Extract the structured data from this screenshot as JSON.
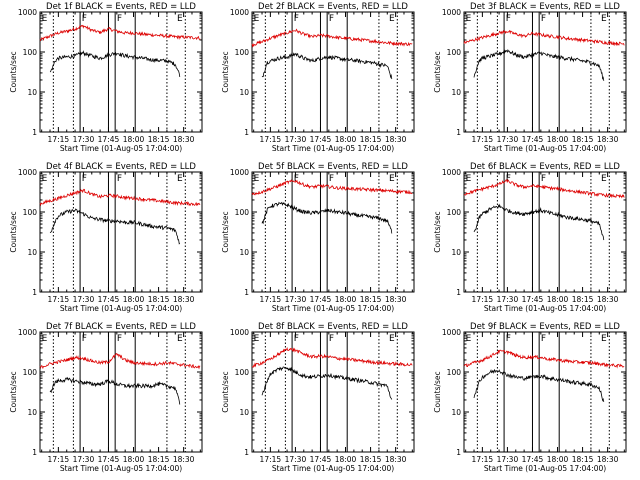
{
  "chart_data": {
    "type": "line",
    "panel_grid": {
      "rows": 3,
      "cols": 3
    },
    "shared": {
      "xlabel": "Start Time (01-Aug-05 17:04:00)",
      "ylabel": "Counts/sec",
      "y_scale": "log",
      "ylim": [
        1,
        1000
      ],
      "ytick_labels": [
        "1",
        "10",
        "100",
        "1000"
      ],
      "ytick_values": [
        1,
        10,
        100,
        1000
      ],
      "xlim": [
        "17:04",
        "18:41"
      ],
      "xtick_labels": [
        "17:15",
        "17:30",
        "17:45",
        "18:00",
        "18:15",
        "18:30"
      ],
      "xtick_values": [
        "17:15",
        "17:30",
        "17:45",
        "18:00",
        "18:15",
        "18:30"
      ],
      "series_colors": {
        "events": "#000000",
        "lld": "#dd0000"
      },
      "solid_markers": [
        "17:28",
        "17:45",
        "17:49",
        "18:01"
      ],
      "dotted_markers": [
        "17:12",
        "17:24",
        "18:20",
        "18:31"
      ],
      "marker_labels": [
        {
          "text": "E",
          "at": "17:05"
        },
        {
          "text": "F",
          "at": "17:29"
        },
        {
          "text": "F",
          "at": "17:50"
        },
        {
          "text": "E",
          "at": "18:26"
        }
      ]
    },
    "panels": [
      {
        "title": "Det 1f BLACK = Events, RED = LLD",
        "events": {
          "x": [
            "17:10",
            "17:12",
            "17:13",
            "17:15",
            "17:20",
            "17:25",
            "17:30",
            "17:35",
            "17:40",
            "17:45",
            "17:50",
            "17:55",
            "18:00",
            "18:05",
            "18:10",
            "18:15",
            "18:20",
            "18:25",
            "18:28"
          ],
          "y": [
            30,
            45,
            60,
            70,
            75,
            80,
            95,
            80,
            70,
            85,
            95,
            80,
            75,
            70,
            65,
            62,
            60,
            50,
            25
          ]
        },
        "lld": {
          "x": [
            "17:04",
            "17:10",
            "17:15",
            "17:20",
            "17:25",
            "17:30",
            "17:35",
            "17:40",
            "17:45",
            "17:50",
            "17:55",
            "18:00",
            "18:05",
            "18:10",
            "18:15",
            "18:20",
            "18:25",
            "18:30",
            "18:35",
            "18:40"
          ],
          "y": [
            200,
            250,
            300,
            330,
            380,
            450,
            350,
            310,
            380,
            330,
            300,
            300,
            280,
            270,
            260,
            250,
            240,
            235,
            230,
            225
          ]
        }
      },
      {
        "title": "Det 2f BLACK = Events, RED = LLD",
        "events": {
          "x": [
            "17:10",
            "17:12",
            "17:13",
            "17:15",
            "17:20",
            "17:25",
            "17:30",
            "17:35",
            "17:40",
            "17:45",
            "17:50",
            "17:55",
            "18:00",
            "18:05",
            "18:10",
            "18:15",
            "18:20",
            "18:25",
            "18:28"
          ],
          "y": [
            22,
            40,
            55,
            60,
            70,
            75,
            90,
            70,
            60,
            70,
            75,
            70,
            65,
            62,
            58,
            55,
            50,
            45,
            20
          ]
        },
        "lld": {
          "x": [
            "17:04",
            "17:10",
            "17:15",
            "17:20",
            "17:25",
            "17:30",
            "17:35",
            "17:40",
            "17:45",
            "17:50",
            "17:55",
            "18:00",
            "18:05",
            "18:10",
            "18:15",
            "18:20",
            "18:25",
            "18:30",
            "18:35",
            "18:40"
          ],
          "y": [
            150,
            180,
            220,
            260,
            300,
            350,
            280,
            240,
            260,
            250,
            230,
            220,
            210,
            200,
            190,
            180,
            170,
            165,
            160,
            155
          ]
        }
      },
      {
        "title": "Det 3f BLACK = Events, RED = LLD",
        "events": {
          "x": [
            "17:10",
            "17:12",
            "17:13",
            "17:15",
            "17:20",
            "17:25",
            "17:30",
            "17:35",
            "17:40",
            "17:45",
            "17:50",
            "17:55",
            "18:00",
            "18:05",
            "18:10",
            "18:15",
            "18:20",
            "18:25",
            "18:28"
          ],
          "y": [
            25,
            45,
            60,
            70,
            80,
            90,
            110,
            85,
            75,
            85,
            95,
            80,
            75,
            70,
            65,
            60,
            55,
            45,
            18
          ]
        },
        "lld": {
          "x": [
            "17:04",
            "17:10",
            "17:15",
            "17:20",
            "17:25",
            "17:30",
            "17:35",
            "17:40",
            "17:45",
            "17:50",
            "17:55",
            "18:00",
            "18:05",
            "18:10",
            "18:15",
            "18:20",
            "18:25",
            "18:30",
            "18:35",
            "18:40"
          ],
          "y": [
            170,
            200,
            230,
            260,
            300,
            330,
            280,
            250,
            290,
            270,
            250,
            240,
            220,
            210,
            200,
            190,
            180,
            170,
            165,
            160
          ]
        }
      },
      {
        "title": "Det 4f BLACK = Events, RED = LLD",
        "events": {
          "x": [
            "17:10",
            "17:12",
            "17:13",
            "17:15",
            "17:20",
            "17:25",
            "17:30",
            "17:35",
            "17:40",
            "17:45",
            "17:50",
            "17:55",
            "18:00",
            "18:05",
            "18:10",
            "18:15",
            "18:20",
            "18:25",
            "18:28"
          ],
          "y": [
            30,
            45,
            60,
            80,
            100,
            110,
            90,
            70,
            65,
            60,
            60,
            55,
            55,
            50,
            45,
            42,
            40,
            35,
            15
          ]
        },
        "lld": {
          "x": [
            "17:04",
            "17:10",
            "17:15",
            "17:20",
            "17:25",
            "17:30",
            "17:35",
            "17:40",
            "17:45",
            "17:50",
            "17:55",
            "18:00",
            "18:05",
            "18:10",
            "18:15",
            "18:20",
            "18:25",
            "18:30",
            "18:35",
            "18:40"
          ],
          "y": [
            160,
            190,
            220,
            260,
            300,
            350,
            280,
            240,
            260,
            250,
            230,
            220,
            210,
            200,
            190,
            180,
            170,
            165,
            160,
            155
          ]
        }
      },
      {
        "title": "Det 5f BLACK = Events, RED = LLD",
        "events": {
          "x": [
            "17:10",
            "17:12",
            "17:13",
            "17:15",
            "17:20",
            "17:25",
            "17:30",
            "17:35",
            "17:40",
            "17:45",
            "17:50",
            "17:55",
            "18:00",
            "18:05",
            "18:10",
            "18:15",
            "18:20",
            "18:25",
            "18:28"
          ],
          "y": [
            50,
            80,
            110,
            140,
            160,
            150,
            120,
            100,
            95,
            100,
            110,
            100,
            95,
            85,
            80,
            75,
            70,
            60,
            30
          ]
        },
        "lld": {
          "x": [
            "17:04",
            "17:10",
            "17:15",
            "17:20",
            "17:25",
            "17:30",
            "17:35",
            "17:40",
            "17:45",
            "17:50",
            "17:55",
            "18:00",
            "18:05",
            "18:10",
            "18:15",
            "18:20",
            "18:25",
            "18:30",
            "18:35",
            "18:40"
          ],
          "y": [
            280,
            320,
            380,
            450,
            550,
            600,
            480,
            420,
            450,
            430,
            400,
            390,
            380,
            370,
            360,
            350,
            340,
            330,
            320,
            310
          ]
        }
      },
      {
        "title": "Det 6f BLACK = Events, RED = LLD",
        "events": {
          "x": [
            "17:10",
            "17:12",
            "17:13",
            "17:15",
            "17:20",
            "17:25",
            "17:30",
            "17:35",
            "17:40",
            "17:45",
            "17:50",
            "17:55",
            "18:00",
            "18:05",
            "18:10",
            "18:15",
            "18:20",
            "18:25",
            "18:28"
          ],
          "y": [
            30,
            50,
            70,
            90,
            120,
            140,
            110,
            95,
            90,
            100,
            110,
            95,
            85,
            75,
            70,
            65,
            60,
            50,
            18
          ]
        },
        "lld": {
          "x": [
            "17:04",
            "17:10",
            "17:15",
            "17:20",
            "17:25",
            "17:30",
            "17:35",
            "17:40",
            "17:45",
            "17:50",
            "17:55",
            "18:00",
            "18:05",
            "18:10",
            "18:15",
            "18:20",
            "18:25",
            "18:30",
            "18:35",
            "18:40"
          ],
          "y": [
            280,
            330,
            380,
            430,
            500,
            600,
            480,
            420,
            450,
            430,
            400,
            380,
            350,
            330,
            310,
            290,
            270,
            260,
            250,
            240
          ]
        }
      },
      {
        "title": "Det 7f BLACK = Events, RED = LLD",
        "events": {
          "x": [
            "17:10",
            "17:12",
            "17:13",
            "17:15",
            "17:20",
            "17:25",
            "17:30",
            "17:35",
            "17:40",
            "17:45",
            "17:50",
            "17:55",
            "18:00",
            "18:05",
            "18:10",
            "18:15",
            "18:20",
            "18:25",
            "18:28"
          ],
          "y": [
            30,
            45,
            55,
            60,
            65,
            60,
            55,
            50,
            50,
            60,
            50,
            45,
            45,
            45,
            45,
            50,
            45,
            40,
            15
          ]
        },
        "lld": {
          "x": [
            "17:04",
            "17:10",
            "17:15",
            "17:20",
            "17:25",
            "17:30",
            "17:35",
            "17:40",
            "17:45",
            "17:50",
            "17:55",
            "18:00",
            "18:05",
            "18:10",
            "18:15",
            "18:20",
            "18:25",
            "18:30",
            "18:35",
            "18:40"
          ],
          "y": [
            130,
            160,
            180,
            200,
            230,
            220,
            190,
            170,
            180,
            280,
            200,
            170,
            165,
            160,
            160,
            170,
            160,
            150,
            140,
            130
          ]
        }
      },
      {
        "title": "Det 8f BLACK = Events, RED = LLD",
        "events": {
          "x": [
            "17:10",
            "17:12",
            "17:13",
            "17:15",
            "17:20",
            "17:25",
            "17:30",
            "17:35",
            "17:40",
            "17:45",
            "17:50",
            "17:55",
            "18:00",
            "18:05",
            "18:10",
            "18:15",
            "18:20",
            "18:25",
            "18:28"
          ],
          "y": [
            25,
            45,
            60,
            90,
            120,
            130,
            100,
            80,
            75,
            80,
            85,
            75,
            70,
            65,
            60,
            55,
            50,
            45,
            18
          ]
        },
        "lld": {
          "x": [
            "17:04",
            "17:10",
            "17:15",
            "17:20",
            "17:25",
            "17:30",
            "17:35",
            "17:40",
            "17:45",
            "17:50",
            "17:55",
            "18:00",
            "18:05",
            "18:10",
            "18:15",
            "18:20",
            "18:25",
            "18:30",
            "18:35",
            "18:40"
          ],
          "y": [
            140,
            170,
            210,
            280,
            380,
            350,
            280,
            240,
            250,
            240,
            220,
            210,
            200,
            190,
            180,
            170,
            165,
            160,
            155,
            150
          ]
        }
      },
      {
        "title": "Det 9f BLACK = Events, RED = LLD",
        "events": {
          "x": [
            "17:10",
            "17:12",
            "17:13",
            "17:15",
            "17:20",
            "17:25",
            "17:30",
            "17:35",
            "17:40",
            "17:45",
            "17:50",
            "17:55",
            "18:00",
            "18:05",
            "18:10",
            "18:15",
            "18:20",
            "18:25",
            "18:28"
          ],
          "y": [
            25,
            40,
            55,
            75,
            100,
            110,
            85,
            75,
            70,
            75,
            80,
            70,
            65,
            60,
            55,
            52,
            48,
            40,
            16
          ]
        },
        "lld": {
          "x": [
            "17:04",
            "17:10",
            "17:15",
            "17:20",
            "17:25",
            "17:30",
            "17:35",
            "17:40",
            "17:45",
            "17:50",
            "17:55",
            "18:00",
            "18:05",
            "18:10",
            "18:15",
            "18:20",
            "18:25",
            "18:30",
            "18:35",
            "18:40"
          ],
          "y": [
            140,
            170,
            200,
            250,
            330,
            320,
            260,
            230,
            240,
            230,
            210,
            200,
            190,
            180,
            175,
            170,
            160,
            150,
            145,
            140
          ]
        }
      }
    ]
  }
}
